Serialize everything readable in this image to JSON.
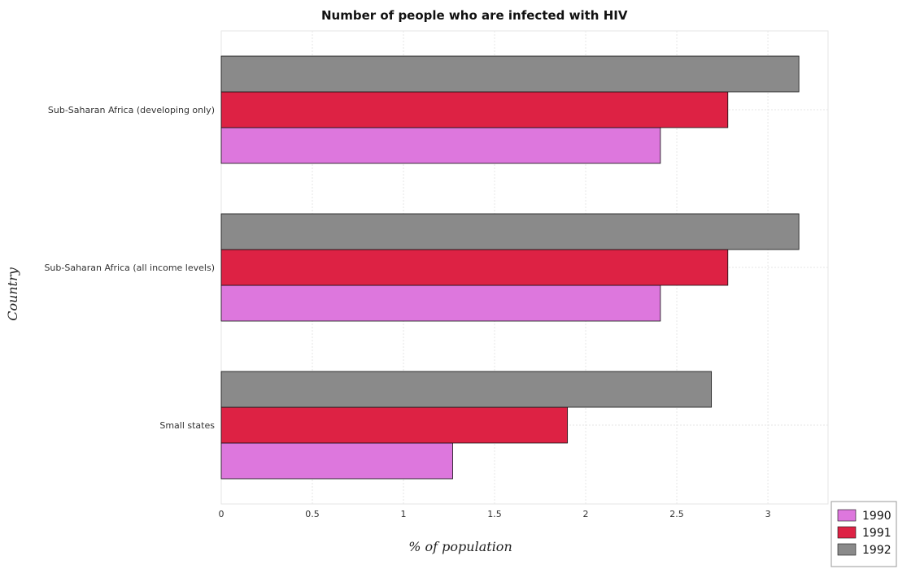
{
  "chart_data": {
    "type": "bar",
    "orientation": "horizontal",
    "title": "Number of people who are infected with HIV",
    "xlabel": "% of population",
    "ylabel": "Country",
    "categories": [
      "Small states",
      "Sub-Saharan Africa (all income levels)",
      "Sub-Saharan Africa (developing only)"
    ],
    "series": [
      {
        "name": "1990",
        "color": "#dd77dd",
        "values": [
          1.27,
          2.41,
          2.41
        ]
      },
      {
        "name": "1991",
        "color": "#dd2244",
        "values": [
          1.9,
          2.78,
          2.78
        ]
      },
      {
        "name": "1992",
        "color": "#8a8a8a",
        "values": [
          2.69,
          3.17,
          3.17
        ]
      }
    ],
    "xticks": [
      "0",
      "0.5",
      "1",
      "1.5",
      "2",
      "2.5",
      "3"
    ],
    "xlim": [
      0,
      3.33
    ],
    "grid": true,
    "legend_position": "bottom-right"
  }
}
